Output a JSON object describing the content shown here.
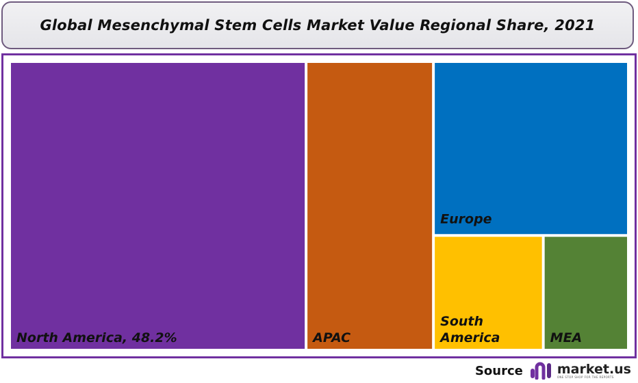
{
  "chart_data": {
    "type": "treemap",
    "title": "Global Mesenchymal Stem Cells Market Value Regional Share, 2021",
    "items": [
      {
        "name": "North America",
        "label": "North America, 48.2%",
        "value": 48.2,
        "color": "#7030a0"
      },
      {
        "name": "APAC",
        "label": "APAC",
        "value": 20.7,
        "color": "#c55a11"
      },
      {
        "name": "Europe",
        "label": "Europe",
        "value": 19.1,
        "color": "#0070c0"
      },
      {
        "name": "South America",
        "label": "South America",
        "value": 7.1,
        "color": "#ffc000"
      },
      {
        "name": "MEA",
        "label": "MEA",
        "value": 5.5,
        "color": "#548235"
      }
    ]
  },
  "footer": {
    "source_label": "Source",
    "logo_name": "market.us",
    "logo_tagline": "ONE STOP SHOP FOR THE REPORTS",
    "logo_icon": "market-us-logo-icon",
    "brand_color": "#7030a0"
  }
}
